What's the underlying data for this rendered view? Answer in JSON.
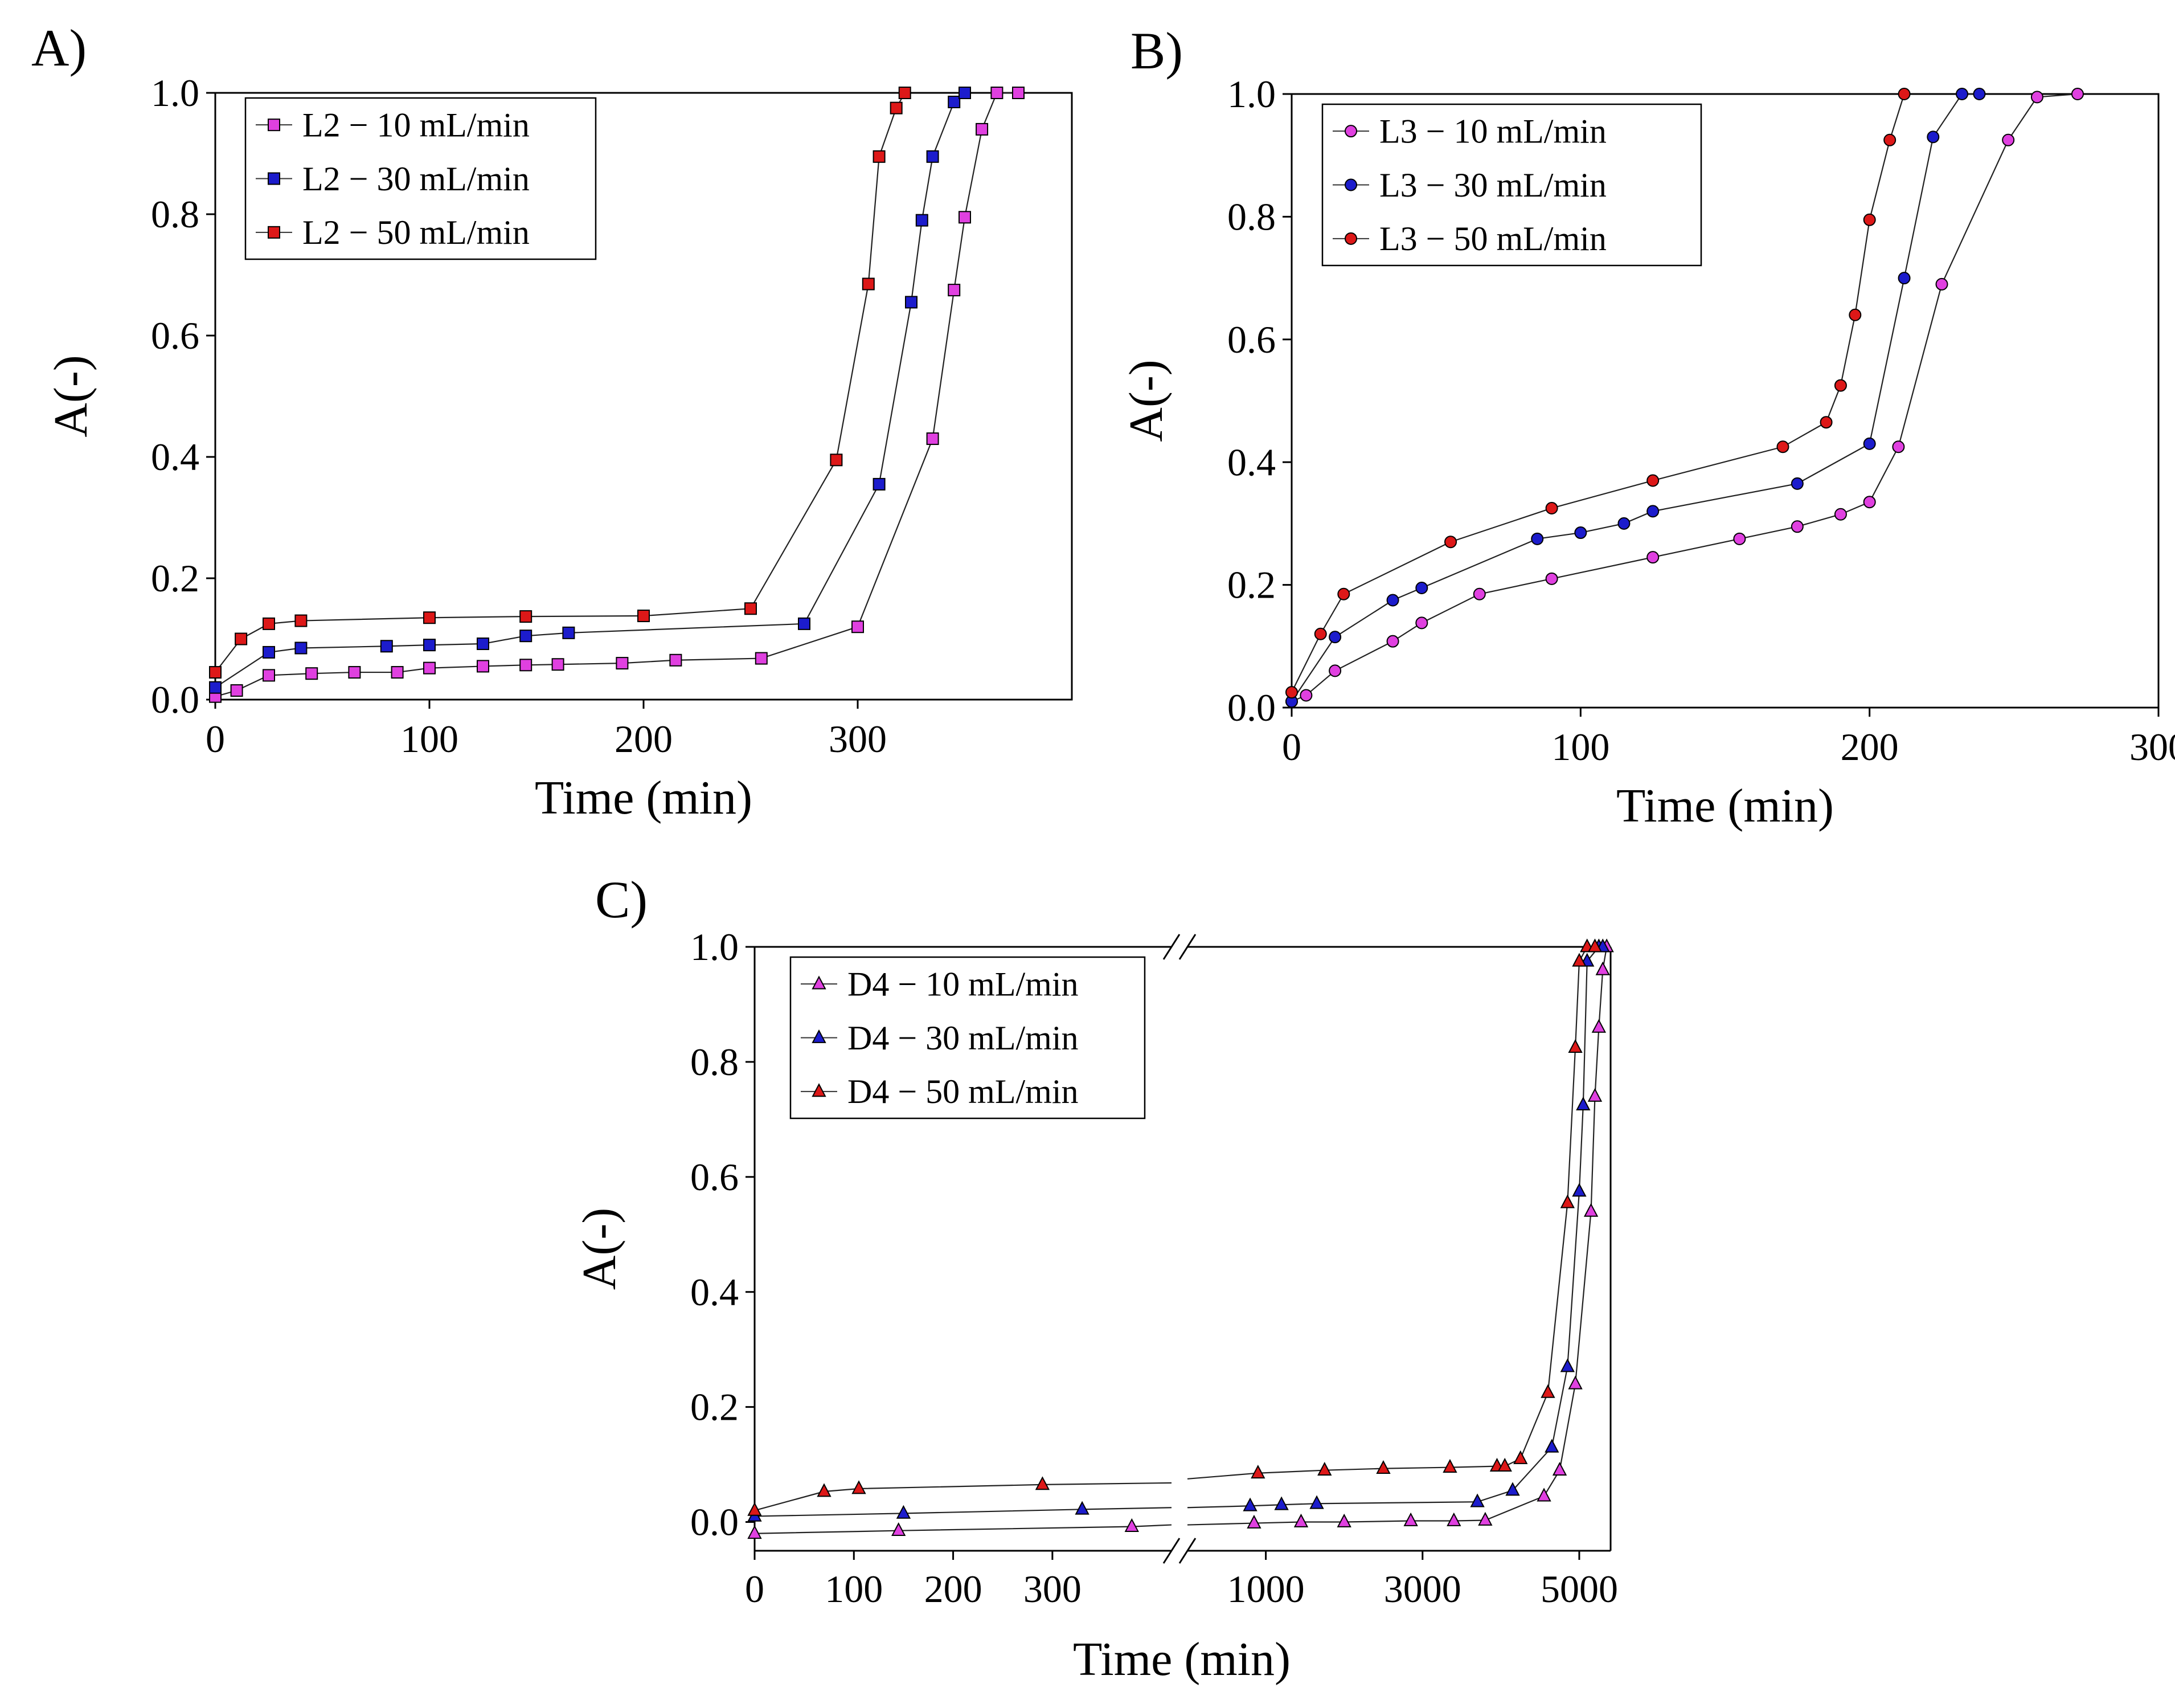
{
  "figure": {
    "description_free": true
  },
  "chart_data": [
    {
      "panel_label": "A)",
      "type": "line",
      "marker": "square",
      "xlabel": "Time (min)",
      "ylabel": "A(-)",
      "xlim": [
        0,
        400
      ],
      "ylim": [
        0,
        1.0
      ],
      "xticks": [
        0,
        100,
        200,
        300
      ],
      "xticklabels": [
        "0",
        "100",
        "200",
        "300"
      ],
      "yticks": [
        0.0,
        0.2,
        0.4,
        0.6,
        0.8,
        1.0
      ],
      "yticklabels": [
        "0.0",
        "0.2",
        "0.4",
        "0.6",
        "0.8",
        "1.0"
      ],
      "legend_position": "top-left",
      "series": [
        {
          "name": "L2 − 10 mL/min",
          "color": "#e040e0",
          "x": [
            0,
            10,
            25,
            45,
            65,
            85,
            100,
            125,
            145,
            160,
            190,
            215,
            255,
            300,
            335,
            345,
            350,
            358,
            365,
            375
          ],
          "y": [
            0.005,
            0.015,
            0.04,
            0.043,
            0.045,
            0.045,
            0.052,
            0.055,
            0.057,
            0.058,
            0.06,
            0.065,
            0.068,
            0.12,
            0.43,
            0.675,
            0.795,
            0.94,
            1.0,
            1.0
          ]
        },
        {
          "name": "L2 − 30 mL/min",
          "color": "#1c1ccc",
          "x": [
            0,
            25,
            40,
            80,
            100,
            125,
            145,
            165,
            275,
            310,
            325,
            330,
            335,
            345,
            350
          ],
          "y": [
            0.02,
            0.078,
            0.085,
            0.088,
            0.09,
            0.092,
            0.105,
            0.11,
            0.125,
            0.355,
            0.655,
            0.79,
            0.895,
            0.985,
            1.0
          ]
        },
        {
          "name": "L2 − 50 mL/min",
          "color": "#dd1818",
          "x": [
            0,
            12,
            25,
            40,
            100,
            145,
            200,
            250,
            290,
            305,
            310,
            318,
            322
          ],
          "y": [
            0.045,
            0.1,
            0.125,
            0.13,
            0.135,
            0.137,
            0.138,
            0.15,
            0.395,
            0.685,
            0.895,
            0.975,
            1.0
          ]
        }
      ]
    },
    {
      "panel_label": "B)",
      "type": "line",
      "marker": "circle",
      "xlabel": "Time (min)",
      "ylabel": "A(-)",
      "xlim": [
        0,
        300
      ],
      "ylim": [
        0,
        1.0
      ],
      "xticks": [
        0,
        100,
        200,
        300
      ],
      "xticklabels": [
        "0",
        "100",
        "200",
        "300"
      ],
      "yticks": [
        0.0,
        0.2,
        0.4,
        0.6,
        0.8,
        1.0
      ],
      "yticklabels": [
        "0.0",
        "0.2",
        "0.4",
        "0.6",
        "0.8",
        "1.0"
      ],
      "legend_position": "top-left",
      "series": [
        {
          "name": "L3 − 10 mL/min",
          "color": "#e040e0",
          "x": [
            0,
            5,
            15,
            35,
            45,
            65,
            90,
            125,
            155,
            175,
            190,
            200,
            210,
            225,
            248,
            258,
            272
          ],
          "y": [
            0.01,
            0.02,
            0.06,
            0.108,
            0.138,
            0.185,
            0.21,
            0.245,
            0.275,
            0.295,
            0.315,
            0.335,
            0.425,
            0.69,
            0.925,
            0.995,
            1.0
          ]
        },
        {
          "name": "L3 − 30 mL/min",
          "color": "#1c1ccc",
          "x": [
            0,
            15,
            35,
            45,
            85,
            100,
            115,
            125,
            175,
            200,
            212,
            222,
            232,
            238
          ],
          "y": [
            0.01,
            0.115,
            0.175,
            0.195,
            0.275,
            0.285,
            0.3,
            0.32,
            0.365,
            0.43,
            0.7,
            0.93,
            1.0,
            1.0
          ]
        },
        {
          "name": "L3 − 50 mL/min",
          "color": "#dd1818",
          "x": [
            0,
            10,
            18,
            55,
            90,
            125,
            170,
            185,
            190,
            195,
            200,
            207,
            212
          ],
          "y": [
            0.025,
            0.12,
            0.185,
            0.27,
            0.325,
            0.37,
            0.425,
            0.465,
            0.525,
            0.64,
            0.795,
            0.925,
            1.0
          ]
        }
      ]
    },
    {
      "panel_label": "C)",
      "type": "line",
      "marker": "triangle",
      "broken_axis": true,
      "xlabel": "Time (min)",
      "ylabel": "A(-)",
      "xlim_left": [
        0,
        420
      ],
      "xlim_right": [
        0,
        5400
      ],
      "ylim": [
        -0.05,
        1.0
      ],
      "xticks_left": [
        0,
        100,
        200,
        300
      ],
      "xticklabels_left": [
        "0",
        "100",
        "200",
        "300"
      ],
      "xticks_right": [
        1000,
        3000,
        5000
      ],
      "xticklabels_right": [
        "1000",
        "3000",
        "5000"
      ],
      "yticks": [
        0.0,
        0.2,
        0.4,
        0.6,
        0.8,
        1.0
      ],
      "yticklabels": [
        "0.0",
        "0.2",
        "0.4",
        "0.6",
        "0.8",
        "1.0"
      ],
      "legend_position": "top-left",
      "series": [
        {
          "name": "D4 − 10 mL/min",
          "color": "#e040e0",
          "left_x": [
            0,
            145,
            380,
            420
          ],
          "left_y": [
            -0.02,
            -0.015,
            -0.008,
            -0.005
          ],
          "right_x": [
            0,
            850,
            1450,
            2000,
            2850,
            3400,
            3800,
            4550,
            4750,
            4950,
            5150,
            5200,
            5250,
            5300,
            5350
          ],
          "right_y": [
            -0.005,
            -0.002,
            0.0,
            0.0,
            0.002,
            0.002,
            0.003,
            0.045,
            0.09,
            0.24,
            0.54,
            0.74,
            0.86,
            0.96,
            1.0
          ]
        },
        {
          "name": "D4 − 30 mL/min",
          "color": "#1c1ccc",
          "left_x": [
            0,
            150,
            330,
            420
          ],
          "left_y": [
            0.01,
            0.015,
            0.022,
            0.025
          ],
          "right_x": [
            0,
            800,
            1200,
            1650,
            3700,
            4150,
            4650,
            4850,
            5000,
            5050,
            5100,
            5250,
            5300
          ],
          "right_y": [
            0.025,
            0.028,
            0.03,
            0.032,
            0.035,
            0.055,
            0.13,
            0.27,
            0.575,
            0.725,
            0.975,
            1.0,
            1.0
          ]
        },
        {
          "name": "D4 − 50 mL/min",
          "color": "#dd1818",
          "left_x": [
            0,
            70,
            105,
            290,
            420
          ],
          "left_y": [
            0.02,
            0.053,
            0.058,
            0.065,
            0.068
          ],
          "right_x": [
            0,
            900,
            1750,
            2500,
            3350,
            3950,
            4050,
            4250,
            4600,
            4850,
            4950,
            5000,
            5100,
            5200
          ],
          "right_y": [
            0.075,
            0.085,
            0.09,
            0.093,
            0.095,
            0.097,
            0.097,
            0.11,
            0.225,
            0.555,
            0.825,
            0.975,
            1.0,
            1.0
          ]
        }
      ]
    }
  ]
}
